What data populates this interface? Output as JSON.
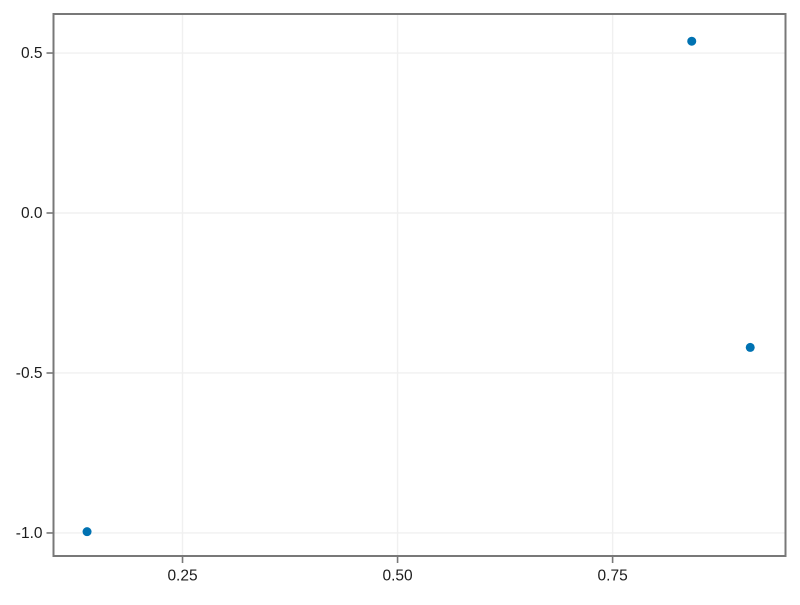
{
  "chart_data": {
    "type": "scatter",
    "title": "",
    "xlabel": "",
    "ylabel": "",
    "points": [
      {
        "x": 0.842,
        "y": 0.537
      },
      {
        "x": 0.91,
        "y": -0.42
      },
      {
        "x": 0.139,
        "y": -0.996
      }
    ],
    "xlim": [
      0.1,
      0.951
    ],
    "ylim": [
      -1.072,
      0.622
    ],
    "x_ticks": [
      {
        "value": 0.25,
        "label": "0.25"
      },
      {
        "value": 0.5,
        "label": "0.50"
      },
      {
        "value": 0.75,
        "label": "0.75"
      }
    ],
    "y_ticks": [
      {
        "value": 0.5,
        "label": "0.5"
      },
      {
        "value": 0.0,
        "label": "0.0"
      },
      {
        "value": -0.5,
        "label": "-0.5"
      },
      {
        "value": -1.0,
        "label": "-1.0"
      }
    ],
    "grid": true,
    "legend": null,
    "colors": {
      "marker": "#0072B2",
      "grid": "#f0f0f0",
      "frame": "#787878",
      "tick": "#787878",
      "tick_label": "#1c1c1c",
      "background": "#ffffff"
    }
  }
}
